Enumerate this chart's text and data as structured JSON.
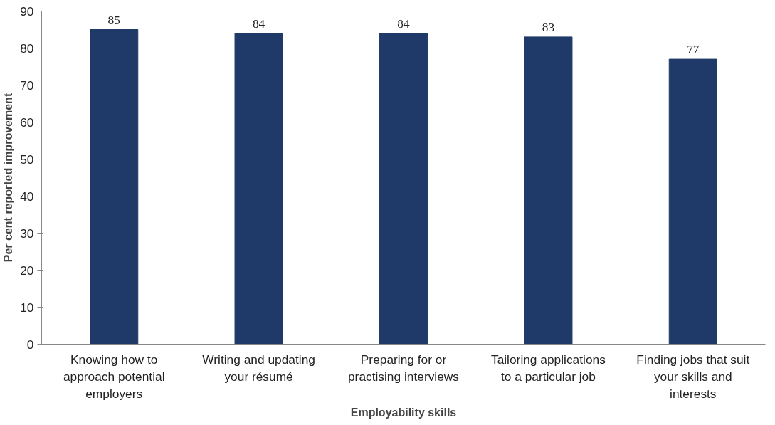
{
  "chart_data": {
    "type": "bar",
    "categories": [
      "Knowing how to approach potential employers",
      "Writing and updating your résumé",
      "Preparing for or practising interviews",
      "Tailoring applications to a particular job",
      "Finding jobs that suit your skills and interests"
    ],
    "values": [
      85,
      84,
      84,
      83,
      77
    ],
    "color": "#1f3a68",
    "xlabel": "Employability skills",
    "ylabel": "Per cent reported improvement",
    "ylim": [
      0,
      90
    ],
    "yticks": [
      0,
      10,
      20,
      30,
      40,
      50,
      60,
      70,
      80,
      90
    ],
    "grid": false,
    "data_labels": true
  }
}
